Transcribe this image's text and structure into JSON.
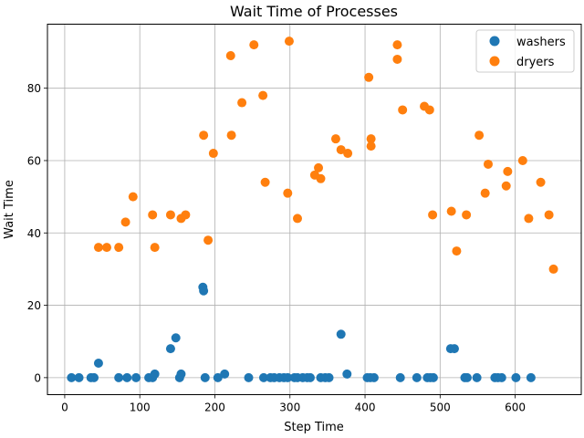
{
  "chart_data": {
    "type": "scatter",
    "title": "Wait Time of Processes",
    "xlabel": "Step Time",
    "ylabel": "Wait Time",
    "xlim": [
      -23,
      688
    ],
    "ylim": [
      -4.7,
      97.7
    ],
    "xticks": [
      0,
      100,
      200,
      300,
      400,
      500,
      600
    ],
    "yticks": [
      0,
      20,
      40,
      60,
      80
    ],
    "grid": true,
    "legend_position": "top-right",
    "series": [
      {
        "name": "washers",
        "color": "#1f77b4",
        "points": [
          [
            9,
            0
          ],
          [
            19,
            0
          ],
          [
            35,
            0
          ],
          [
            39,
            0
          ],
          [
            45,
            4
          ],
          [
            72,
            0
          ],
          [
            83,
            0
          ],
          [
            95,
            0
          ],
          [
            112,
            0
          ],
          [
            117,
            0
          ],
          [
            120,
            1
          ],
          [
            141,
            8
          ],
          [
            148,
            11
          ],
          [
            153,
            0
          ],
          [
            155,
            1
          ],
          [
            184,
            25
          ],
          [
            185,
            24
          ],
          [
            187,
            0
          ],
          [
            204,
            0
          ],
          [
            213,
            1
          ],
          [
            245,
            0
          ],
          [
            265,
            0
          ],
          [
            274,
            0
          ],
          [
            279,
            0
          ],
          [
            286,
            0
          ],
          [
            292,
            0
          ],
          [
            297,
            0
          ],
          [
            306,
            0
          ],
          [
            310,
            0
          ],
          [
            317,
            0
          ],
          [
            323,
            0
          ],
          [
            327,
            0
          ],
          [
            341,
            0
          ],
          [
            347,
            0
          ],
          [
            352,
            0
          ],
          [
            368,
            12
          ],
          [
            376,
            1
          ],
          [
            403,
            0
          ],
          [
            407,
            0
          ],
          [
            412,
            0
          ],
          [
            447,
            0
          ],
          [
            469,
            0
          ],
          [
            483,
            0
          ],
          [
            487,
            0
          ],
          [
            491,
            0
          ],
          [
            514,
            8
          ],
          [
            519,
            8
          ],
          [
            533,
            0
          ],
          [
            536,
            0
          ],
          [
            549,
            0
          ],
          [
            573,
            0
          ],
          [
            577,
            0
          ],
          [
            582,
            0
          ],
          [
            601,
            0
          ],
          [
            621,
            0
          ]
        ]
      },
      {
        "name": "dryers",
        "color": "#ff7f0e",
        "points": [
          [
            45,
            36
          ],
          [
            56,
            36
          ],
          [
            72,
            36
          ],
          [
            81,
            43
          ],
          [
            91,
            50
          ],
          [
            117,
            45
          ],
          [
            120,
            36
          ],
          [
            141,
            45
          ],
          [
            155,
            44
          ],
          [
            161,
            45
          ],
          [
            185,
            67
          ],
          [
            191,
            38
          ],
          [
            198,
            62
          ],
          [
            221,
            89
          ],
          [
            222,
            67
          ],
          [
            236,
            76
          ],
          [
            252,
            92
          ],
          [
            264,
            78
          ],
          [
            267,
            54
          ],
          [
            297,
            51
          ],
          [
            299,
            93
          ],
          [
            310,
            44
          ],
          [
            333,
            56
          ],
          [
            338,
            58
          ],
          [
            341,
            55
          ],
          [
            361,
            66
          ],
          [
            368,
            63
          ],
          [
            377,
            62
          ],
          [
            405,
            83
          ],
          [
            408,
            66
          ],
          [
            408,
            64
          ],
          [
            443,
            92
          ],
          [
            443,
            88
          ],
          [
            450,
            74
          ],
          [
            479,
            75
          ],
          [
            486,
            74
          ],
          [
            490,
            45
          ],
          [
            515,
            46
          ],
          [
            522,
            35
          ],
          [
            535,
            45
          ],
          [
            552,
            67
          ],
          [
            560,
            51
          ],
          [
            564,
            59
          ],
          [
            588,
            53
          ],
          [
            590,
            57
          ],
          [
            610,
            60
          ],
          [
            618,
            44
          ],
          [
            634,
            54
          ],
          [
            645,
            45
          ],
          [
            651,
            30
          ]
        ]
      }
    ]
  }
}
